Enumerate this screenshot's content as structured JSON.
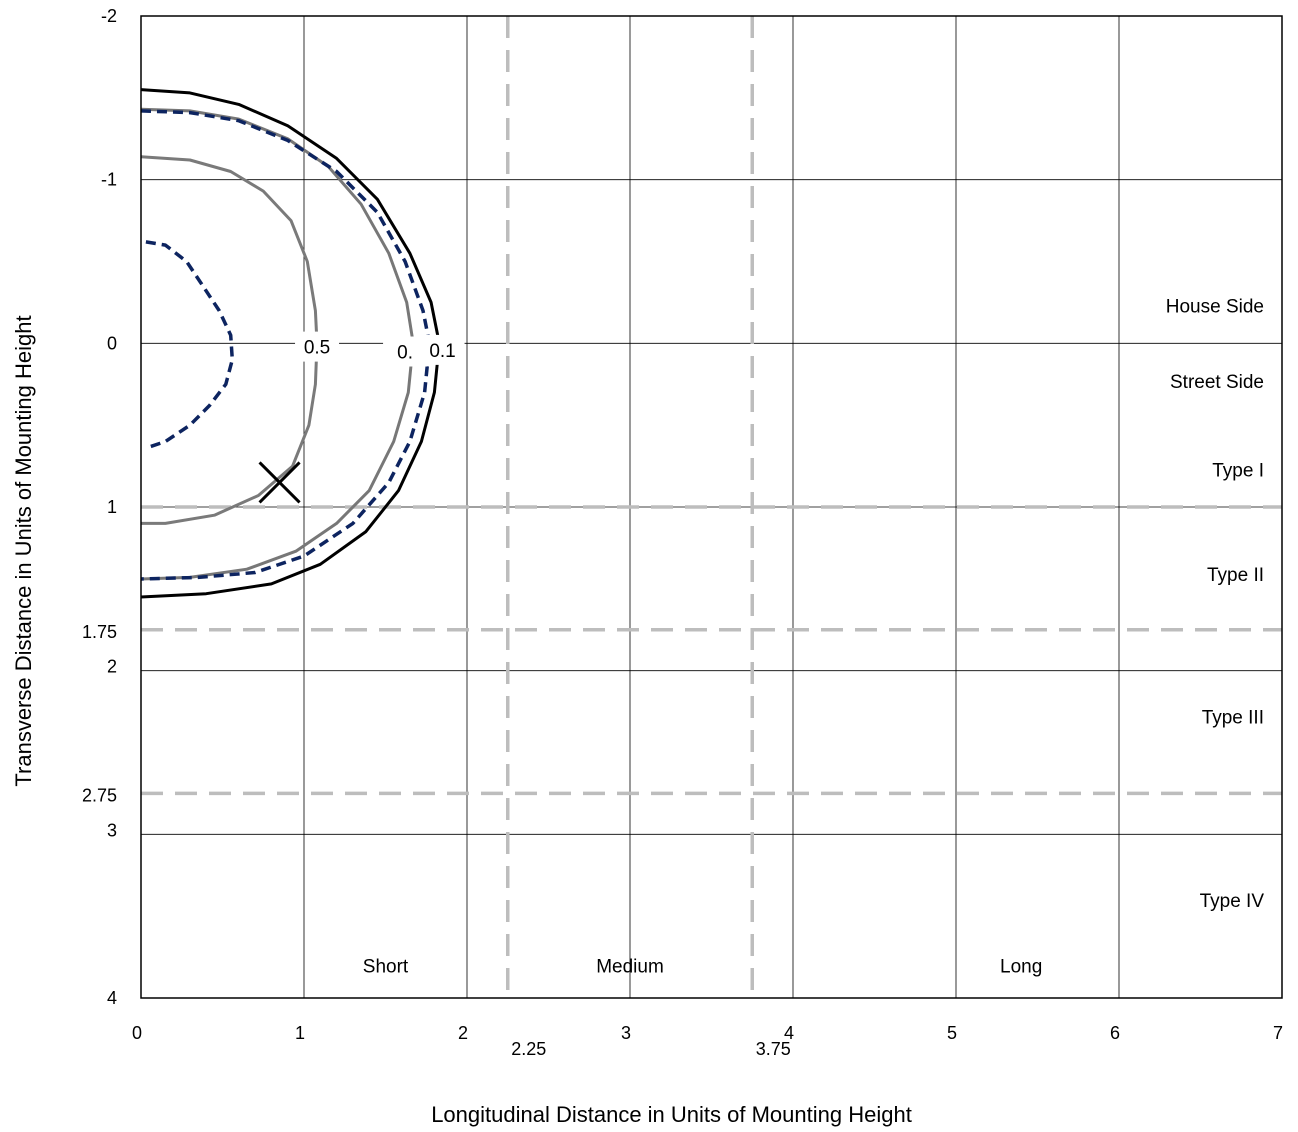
{
  "chart_data": {
    "type": "line",
    "title": "",
    "xlabel": "Longitudinal Distance in Units of Mounting Height",
    "ylabel": "Transverse Distance in Units of Mounting Height",
    "xlim": [
      0,
      7
    ],
    "ylim": [
      -2,
      4
    ],
    "y_inverted": true,
    "grid": true,
    "x_ticks": [
      {
        "v": 0,
        "label": "0"
      },
      {
        "v": 1,
        "label": "1"
      },
      {
        "v": 2,
        "label": "2"
      },
      {
        "v": 3,
        "label": "3"
      },
      {
        "v": 4,
        "label": "4"
      },
      {
        "v": 5,
        "label": "5"
      },
      {
        "v": 6,
        "label": "6"
      },
      {
        "v": 7,
        "label": "7"
      }
    ],
    "x_extra_ticks": [
      {
        "v": 2.25,
        "label": "2.25"
      },
      {
        "v": 3.75,
        "label": "3.75"
      }
    ],
    "y_ticks": [
      {
        "v": -2,
        "label": "-2"
      },
      {
        "v": -1,
        "label": "-1"
      },
      {
        "v": 0,
        "label": "0"
      },
      {
        "v": 1,
        "label": "1"
      },
      {
        "v": 1.75,
        "label": "1.75"
      },
      {
        "v": 2,
        "label": "2"
      },
      {
        "v": 2.75,
        "label": "2.75"
      },
      {
        "v": 3,
        "label": "3"
      },
      {
        "v": 4,
        "label": "4"
      }
    ],
    "dashed_lines": {
      "vertical": [
        2.25,
        3.75
      ],
      "horizontal": [
        1,
        1.75,
        2.75
      ]
    },
    "region_labels": [
      {
        "text": "House Side",
        "x": 6.5,
        "y": -0.23
      },
      {
        "text": "Street Side",
        "x": 6.5,
        "y": 0.23
      },
      {
        "text": "Type I",
        "x": 6.5,
        "y": 0.77
      },
      {
        "text": "Type II",
        "x": 6.5,
        "y": 1.41
      },
      {
        "text": "Type III",
        "x": 6.5,
        "y": 2.28
      },
      {
        "text": "Type IV",
        "x": 6.5,
        "y": 3.4
      },
      {
        "text": "Short",
        "x": 1.5,
        "y": 3.8
      },
      {
        "text": "Medium",
        "x": 3.0,
        "y": 3.8
      },
      {
        "text": "Long",
        "x": 5.4,
        "y": 3.8
      }
    ],
    "marker": {
      "type": "x",
      "x": 0.85,
      "y": 0.85
    },
    "series": [
      {
        "color": "#000000",
        "dash": "solid",
        "points": [
          [
            0,
            -1.55
          ],
          [
            0.3,
            -1.53
          ],
          [
            0.6,
            -1.46
          ],
          [
            0.9,
            -1.33
          ],
          [
            1.2,
            -1.13
          ],
          [
            1.45,
            -0.88
          ],
          [
            1.65,
            -0.55
          ],
          [
            1.78,
            -0.25
          ],
          [
            1.83,
            0
          ],
          [
            1.8,
            0.3
          ],
          [
            1.72,
            0.6
          ],
          [
            1.58,
            0.9
          ],
          [
            1.38,
            1.15
          ],
          [
            1.1,
            1.35
          ],
          [
            0.8,
            1.47
          ],
          [
            0.4,
            1.53
          ],
          [
            0,
            1.55
          ]
        ]
      },
      {
        "color": "#777777",
        "dash": "solid",
        "points": [
          [
            0,
            -1.43
          ],
          [
            0.3,
            -1.42
          ],
          [
            0.6,
            -1.37
          ],
          [
            0.9,
            -1.25
          ],
          [
            1.15,
            -1.08
          ],
          [
            1.35,
            -0.85
          ],
          [
            1.52,
            -0.55
          ],
          [
            1.63,
            -0.25
          ],
          [
            1.67,
            0
          ],
          [
            1.64,
            0.3
          ],
          [
            1.55,
            0.6
          ],
          [
            1.4,
            0.9
          ],
          [
            1.2,
            1.1
          ],
          [
            0.95,
            1.27
          ],
          [
            0.65,
            1.38
          ],
          [
            0.3,
            1.43
          ],
          [
            0,
            1.44
          ]
        ]
      },
      {
        "color": "#0d2460",
        "dash": "dashed",
        "points": [
          [
            0,
            -1.42
          ],
          [
            0.3,
            -1.41
          ],
          [
            0.6,
            -1.36
          ],
          [
            0.9,
            -1.24
          ],
          [
            1.2,
            -1.05
          ],
          [
            1.45,
            -0.8
          ],
          [
            1.62,
            -0.5
          ],
          [
            1.73,
            -0.2
          ],
          [
            1.77,
            0
          ],
          [
            1.74,
            0.3
          ],
          [
            1.65,
            0.6
          ],
          [
            1.52,
            0.85
          ],
          [
            1.3,
            1.1
          ],
          [
            1.0,
            1.3
          ],
          [
            0.7,
            1.4
          ],
          [
            0.35,
            1.43
          ],
          [
            0,
            1.44
          ]
        ]
      },
      {
        "color": "#7a7a7a",
        "dash": "solid",
        "points": [
          [
            0,
            -1.14
          ],
          [
            0.3,
            -1.12
          ],
          [
            0.55,
            -1.05
          ],
          [
            0.75,
            -0.93
          ],
          [
            0.92,
            -0.75
          ],
          [
            1.02,
            -0.5
          ],
          [
            1.07,
            -0.2
          ],
          [
            1.08,
            0
          ],
          [
            1.07,
            0.25
          ],
          [
            1.03,
            0.5
          ],
          [
            0.93,
            0.75
          ],
          [
            0.72,
            0.93
          ],
          [
            0.45,
            1.05
          ],
          [
            0.15,
            1.1
          ],
          [
            0,
            1.1
          ]
        ]
      },
      {
        "color": "#0d2460",
        "dash": "dashed",
        "points": [
          [
            0.03,
            -0.62
          ],
          [
            0.15,
            -0.6
          ],
          [
            0.28,
            -0.5
          ],
          [
            0.38,
            -0.35
          ],
          [
            0.48,
            -0.2
          ],
          [
            0.55,
            -0.05
          ],
          [
            0.56,
            0.1
          ],
          [
            0.52,
            0.25
          ],
          [
            0.42,
            0.38
          ],
          [
            0.3,
            0.5
          ],
          [
            0.15,
            0.6
          ],
          [
            0.03,
            0.64
          ]
        ]
      }
    ],
    "contour_labels": [
      {
        "text": "0.5",
        "x": 1.08,
        "y": 0.02
      },
      {
        "text": "0.",
        "x": 1.62,
        "y": 0.05
      },
      {
        "text": "0.1",
        "x": 1.85,
        "y": 0.04
      }
    ]
  }
}
